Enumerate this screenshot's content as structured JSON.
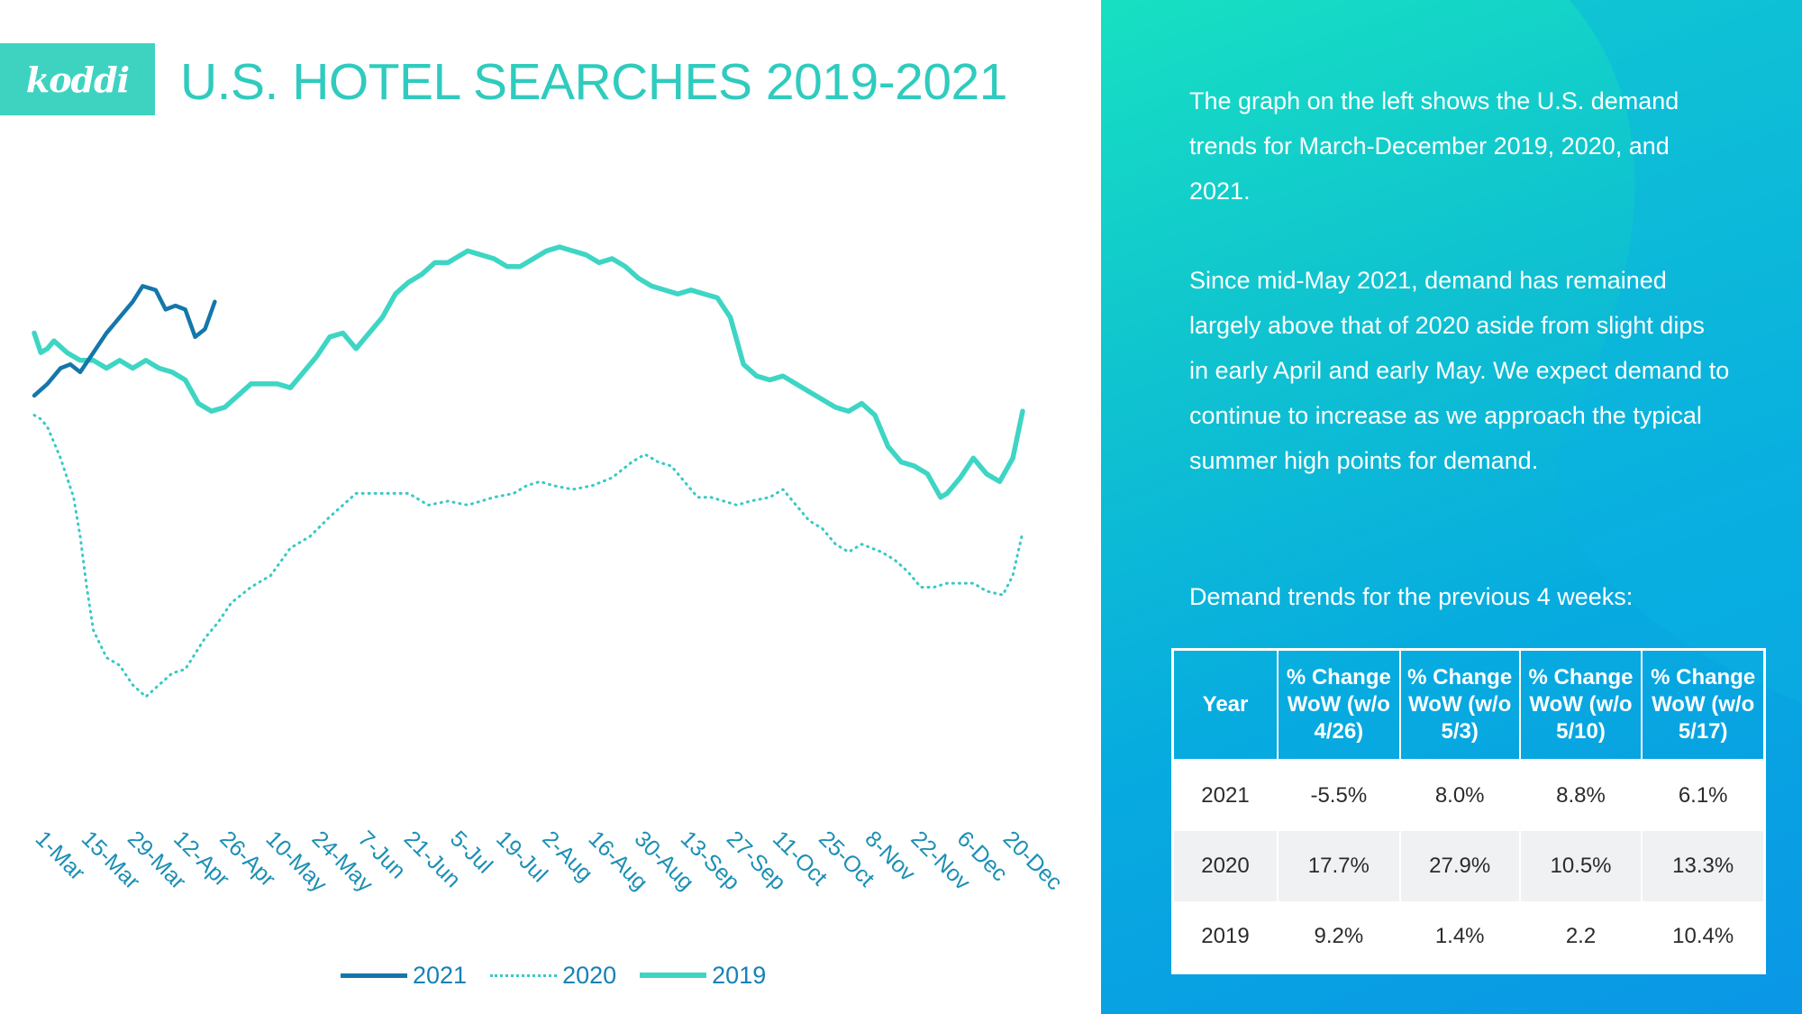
{
  "brand": {
    "logo_text": "koddi",
    "accent": "#3ed3c0"
  },
  "chart_data": {
    "type": "line",
    "title": "U.S. HOTEL SEARCHES 2019-2021",
    "xlabel": "",
    "ylabel": "",
    "x_tick_labels": [
      "1-Mar",
      "15-Mar",
      "29-Mar",
      "12-Apr",
      "26-Apr",
      "10-May",
      "24-May",
      "7-Jun",
      "21-Jun",
      "5-Jul",
      "19-Jul",
      "2-Aug",
      "16-Aug",
      "30-Aug",
      "13-Sep",
      "27-Sep",
      "11-Oct",
      "25-Oct",
      "8-Nov",
      "22-Nov",
      "6-Dec",
      "20-Dec"
    ],
    "x_start": "2019-03-01",
    "x_end": "2019-12-31",
    "y_axis_shown": false,
    "grid": false,
    "legend_position": "bottom",
    "series": [
      {
        "name": "2021",
        "style": "solid",
        "color": "#1477aa",
        "points": [
          [
            0,
            46
          ],
          [
            4,
            49
          ],
          [
            8,
            53
          ],
          [
            11,
            54
          ],
          [
            14,
            52
          ],
          [
            18,
            57
          ],
          [
            22,
            62
          ],
          [
            26,
            66
          ],
          [
            30,
            70
          ],
          [
            33,
            74
          ],
          [
            37,
            73
          ],
          [
            40,
            68
          ],
          [
            43,
            69
          ],
          [
            46,
            68
          ],
          [
            49,
            61
          ],
          [
            52,
            63
          ],
          [
            55,
            70
          ]
        ]
      },
      {
        "name": "2020",
        "style": "dotted",
        "color": "#38c9c4",
        "points": [
          [
            0,
            41
          ],
          [
            2,
            40
          ],
          [
            4,
            38
          ],
          [
            8,
            30
          ],
          [
            12,
            20
          ],
          [
            14,
            10
          ],
          [
            16,
            -3
          ],
          [
            18,
            -14
          ],
          [
            22,
            -21
          ],
          [
            26,
            -23
          ],
          [
            30,
            -28
          ],
          [
            34,
            -31
          ],
          [
            38,
            -28
          ],
          [
            42,
            -25
          ],
          [
            46,
            -24
          ],
          [
            52,
            -16
          ],
          [
            56,
            -12
          ],
          [
            60,
            -7
          ],
          [
            66,
            -3
          ],
          [
            72,
            0
          ],
          [
            78,
            7
          ],
          [
            84,
            10
          ],
          [
            90,
            15
          ],
          [
            98,
            21
          ],
          [
            106,
            21
          ],
          [
            114,
            21
          ],
          [
            120,
            18
          ],
          [
            126,
            19
          ],
          [
            132,
            18
          ],
          [
            140,
            20
          ],
          [
            146,
            21
          ],
          [
            150,
            23
          ],
          [
            154,
            24
          ],
          [
            158,
            23
          ],
          [
            164,
            22
          ],
          [
            170,
            23
          ],
          [
            176,
            25
          ],
          [
            182,
            29
          ],
          [
            186,
            31
          ],
          [
            190,
            29
          ],
          [
            194,
            28
          ],
          [
            198,
            24
          ],
          [
            202,
            20
          ],
          [
            206,
            20
          ],
          [
            210,
            19
          ],
          [
            214,
            18
          ],
          [
            218,
            19
          ],
          [
            224,
            20
          ],
          [
            228,
            22
          ],
          [
            232,
            18
          ],
          [
            236,
            14
          ],
          [
            240,
            12
          ],
          [
            244,
            8
          ],
          [
            248,
            6
          ],
          [
            252,
            8
          ],
          [
            258,
            6
          ],
          [
            262,
            4
          ],
          [
            266,
            1
          ],
          [
            270,
            -3
          ],
          [
            274,
            -3
          ],
          [
            278,
            -2
          ],
          [
            282,
            -2
          ],
          [
            286,
            -2
          ],
          [
            290,
            -4
          ],
          [
            295,
            -5
          ],
          [
            298,
            0
          ],
          [
            301,
            11
          ]
        ]
      },
      {
        "name": "2019",
        "style": "solid",
        "color": "#3ed5c4",
        "points": [
          [
            0,
            62
          ],
          [
            2,
            57
          ],
          [
            4,
            58
          ],
          [
            6,
            60
          ],
          [
            10,
            57
          ],
          [
            14,
            55
          ],
          [
            18,
            55
          ],
          [
            22,
            53
          ],
          [
            26,
            55
          ],
          [
            30,
            53
          ],
          [
            34,
            55
          ],
          [
            38,
            53
          ],
          [
            42,
            52
          ],
          [
            46,
            50
          ],
          [
            50,
            44
          ],
          [
            54,
            42
          ],
          [
            58,
            43
          ],
          [
            62,
            46
          ],
          [
            66,
            49
          ],
          [
            70,
            49
          ],
          [
            74,
            49
          ],
          [
            78,
            48
          ],
          [
            82,
            52
          ],
          [
            86,
            56
          ],
          [
            90,
            61
          ],
          [
            94,
            62
          ],
          [
            98,
            58
          ],
          [
            102,
            62
          ],
          [
            106,
            66
          ],
          [
            110,
            72
          ],
          [
            114,
            75
          ],
          [
            118,
            77
          ],
          [
            122,
            80
          ],
          [
            126,
            80
          ],
          [
            128,
            81
          ],
          [
            132,
            83
          ],
          [
            136,
            82
          ],
          [
            140,
            81
          ],
          [
            144,
            79
          ],
          [
            148,
            79
          ],
          [
            152,
            81
          ],
          [
            156,
            83
          ],
          [
            160,
            84
          ],
          [
            164,
            83
          ],
          [
            168,
            82
          ],
          [
            172,
            80
          ],
          [
            176,
            81
          ],
          [
            180,
            79
          ],
          [
            184,
            76
          ],
          [
            188,
            74
          ],
          [
            192,
            73
          ],
          [
            196,
            72
          ],
          [
            200,
            73
          ],
          [
            204,
            72
          ],
          [
            208,
            71
          ],
          [
            212,
            66
          ],
          [
            216,
            54
          ],
          [
            220,
            51
          ],
          [
            224,
            50
          ],
          [
            228,
            51
          ],
          [
            232,
            49
          ],
          [
            236,
            47
          ],
          [
            240,
            45
          ],
          [
            244,
            43
          ],
          [
            248,
            42
          ],
          [
            252,
            44
          ],
          [
            256,
            41
          ],
          [
            260,
            33
          ],
          [
            264,
            29
          ],
          [
            268,
            28
          ],
          [
            272,
            26
          ],
          [
            276,
            20
          ],
          [
            278,
            21
          ],
          [
            282,
            25
          ],
          [
            286,
            30
          ],
          [
            290,
            26
          ],
          [
            294,
            24
          ],
          [
            298,
            30
          ],
          [
            301,
            42
          ]
        ]
      }
    ]
  },
  "panel": {
    "paragraph1": "The graph on the left shows the U.S. demand trends for March-December 2019, 2020, and 2021.",
    "paragraph2": "Since mid-May 2021, demand has remained largely above that of 2020 aside from slight dips in early April and early May. We expect demand to continue to increase as we approach the typical summer high points for demand.",
    "paragraph3": "Demand trends for the previous 4 weeks:",
    "table": {
      "headers": [
        "Year",
        "% Change WoW (w/o 4/26)",
        "% Change WoW (w/o 5/3)",
        "% Change WoW (w/o 5/10)",
        "% Change WoW (w/o 5/17)"
      ],
      "rows": [
        [
          "2021",
          "-5.5%",
          "8.0%",
          "8.8%",
          "6.1%"
        ],
        [
          "2020",
          "17.7%",
          "27.9%",
          "10.5%",
          "13.3%"
        ],
        [
          "2019",
          "9.2%",
          "1.4%",
          "2.2",
          "10.4%"
        ]
      ]
    }
  }
}
